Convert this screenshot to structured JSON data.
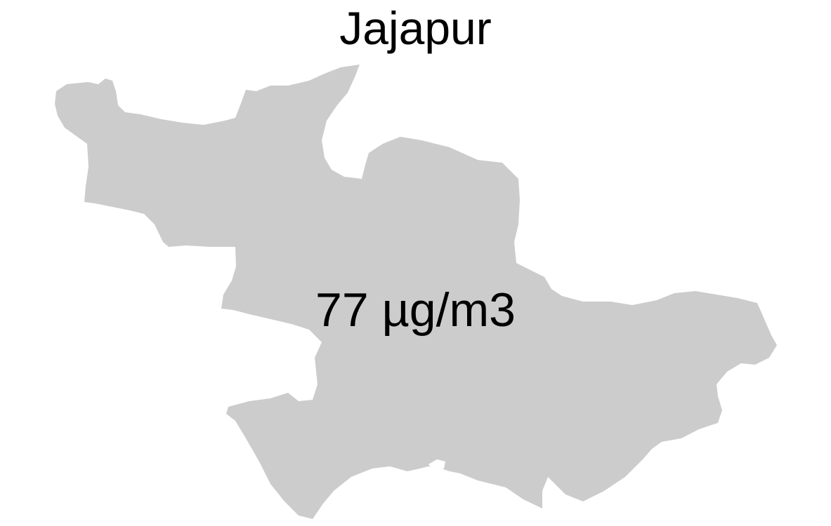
{
  "map": {
    "title": "Jajapur",
    "value_label": "77 µg/m3",
    "region_fill": "#cccccc",
    "background": "#ffffff",
    "text_color": "#000000"
  }
}
